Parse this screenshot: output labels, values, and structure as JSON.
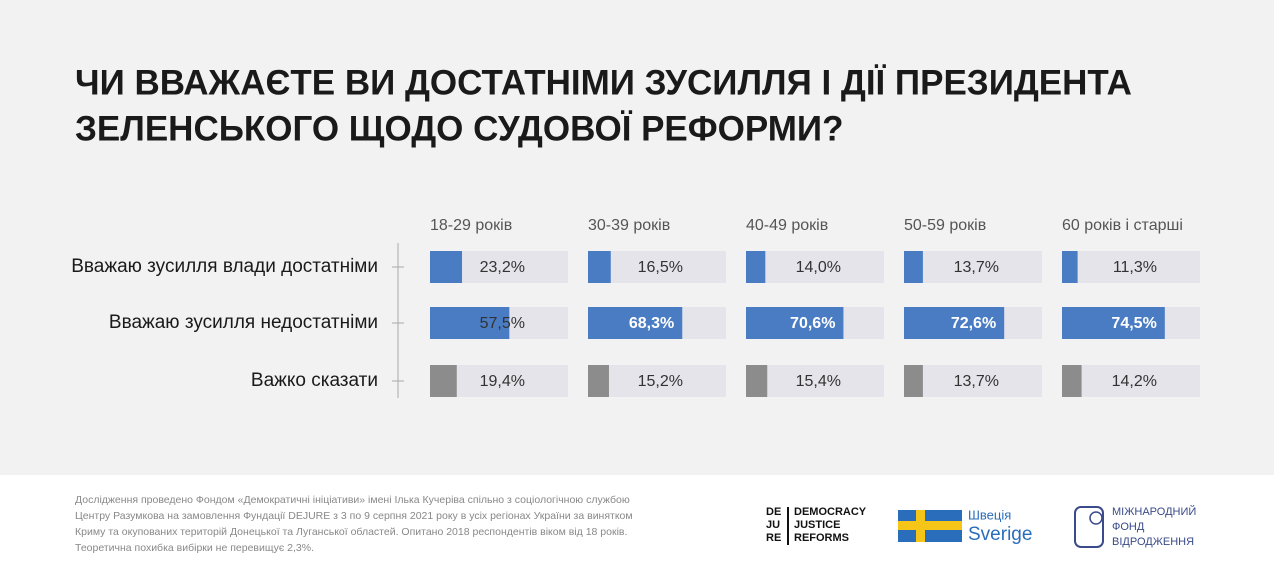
{
  "chart_data": {
    "type": "bar",
    "title": [
      "ЧИ ВВАЖАЄТЕ ВИ ДОСТАТНІМИ ЗУСИЛЛЯ І ДІЇ ПРЕЗИДЕНТА",
      "ЗЕЛЕНСЬКОГО ЩОДО СУДОВОЇ РЕФОРМИ?"
    ],
    "categories": [
      "Вважаю зусилля влади достатніми",
      "Вважаю зусилля недостатніми",
      "Важко сказати"
    ],
    "category_colors": [
      "#4a7cc4",
      "#4a7cc4",
      "#8c8c8c"
    ],
    "xlim": [
      0,
      100
    ],
    "series": [
      {
        "name": "18-29 років",
        "values": [
          23.2,
          57.5,
          19.4
        ],
        "value_labels": [
          "23,2%",
          "57,5%",
          "19,4%"
        ]
      },
      {
        "name": "30-39 років",
        "values": [
          16.5,
          68.3,
          15.2
        ],
        "value_labels": [
          "16,5%",
          "68,3%",
          "15,2%"
        ]
      },
      {
        "name": "40-49 років",
        "values": [
          14.0,
          70.6,
          15.4
        ],
        "value_labels": [
          "14,0%",
          "70,6%",
          "15,4%"
        ]
      },
      {
        "name": "50-59 років",
        "values": [
          13.7,
          72.6,
          13.7
        ],
        "value_labels": [
          "13,7%",
          "72,6%",
          "13,7%"
        ]
      },
      {
        "name": "60  років і старші",
        "values": [
          11.3,
          74.5,
          14.2
        ],
        "value_labels": [
          "11,3%",
          "74,5%",
          "14,2%"
        ]
      }
    ]
  },
  "footer": {
    "note": [
      "Дослідження проведено Фондом «Демократичні ініціативи» імені Ілька Кучеріва спільно з соціологічною службою",
      "Центру Разумкова на замовлення Фундації DEJURE з 3 по 9 серпня 2021 року в усіх регіонах України за винятком",
      "Криму та окупованих територій Донецької та Луганської областей. Опитано 2018  респондентів віком від 18 років.",
      "Теоретична похибка вибірки не перевищує 2,3%."
    ],
    "dejure": [
      "DE",
      "JU",
      "RE"
    ],
    "dejure_name": [
      "DEMOCRACY",
      "JUSTICE",
      "REFORMS"
    ],
    "sweden": [
      "Швеція",
      "Sverige"
    ],
    "irf": [
      "МІЖНАРОДНИЙ",
      "ФОНД",
      "ВІДРОДЖЕННЯ"
    ]
  }
}
